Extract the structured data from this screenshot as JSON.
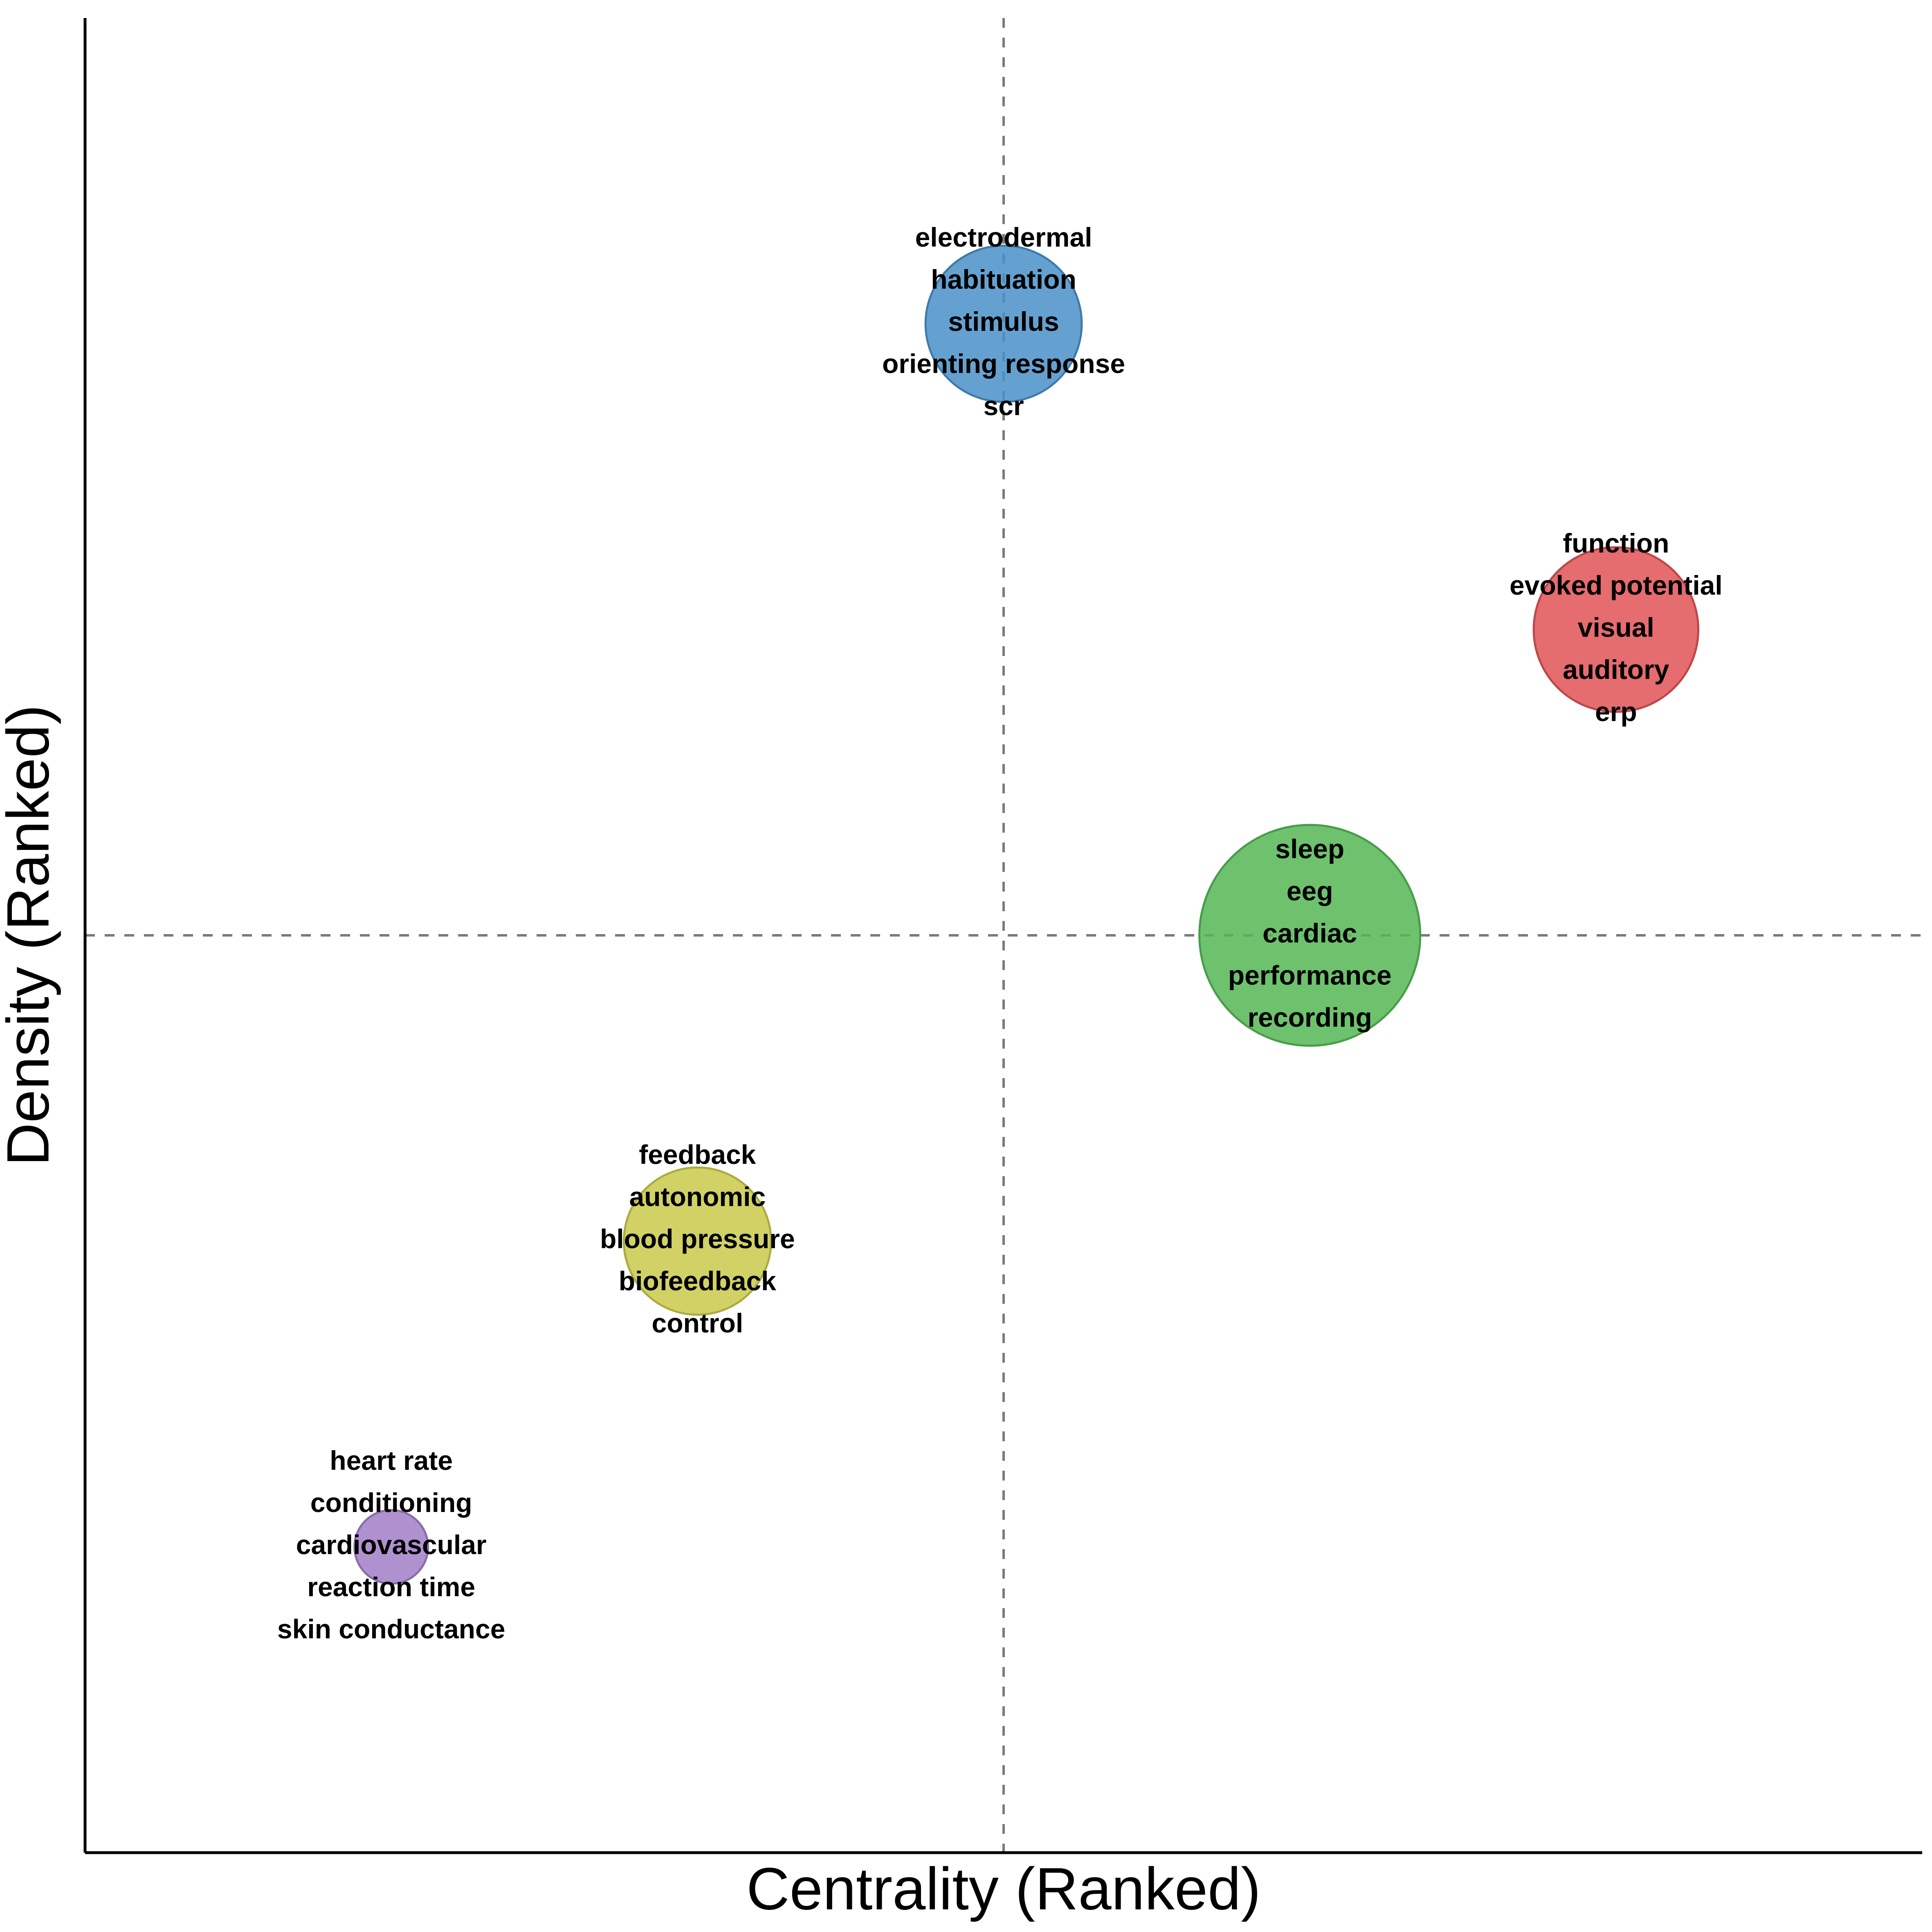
{
  "chart_data": {
    "type": "scatter",
    "title": "",
    "xlabel": "Centrality (Ranked)",
    "ylabel": "Density (Ranked)",
    "xlim": [
      0,
      6
    ],
    "ylim": [
      0,
      6
    ],
    "reference_lines": {
      "x": 3,
      "y": 3
    },
    "grid": false,
    "legend": "none",
    "clusters": [
      {
        "x": 1,
        "y": 1,
        "size": 1,
        "color": "#a27ec8",
        "labels": [
          "heart rate",
          "conditioning",
          "cardiovascular",
          "reaction time",
          "skin conductance"
        ]
      },
      {
        "x": 2,
        "y": 2,
        "size": 4,
        "color": "#c9c94a",
        "labels": [
          "feedback",
          "autonomic",
          "blood pressure",
          "biofeedback",
          "control"
        ]
      },
      {
        "x": 3,
        "y": 5,
        "size": 4.5,
        "color": "#4a90c8",
        "labels": [
          "electrodermal",
          "habituation",
          "stimulus",
          "orienting response",
          "scr"
        ]
      },
      {
        "x": 4,
        "y": 3,
        "size": 9,
        "color": "#55b755",
        "labels": [
          "sleep",
          "eeg",
          "cardiac",
          "performance",
          "recording"
        ]
      },
      {
        "x": 5,
        "y": 4,
        "size": 5,
        "color": "#e05256",
        "labels": [
          "function",
          "evoked potential",
          "visual",
          "auditory",
          "erp"
        ]
      }
    ]
  }
}
